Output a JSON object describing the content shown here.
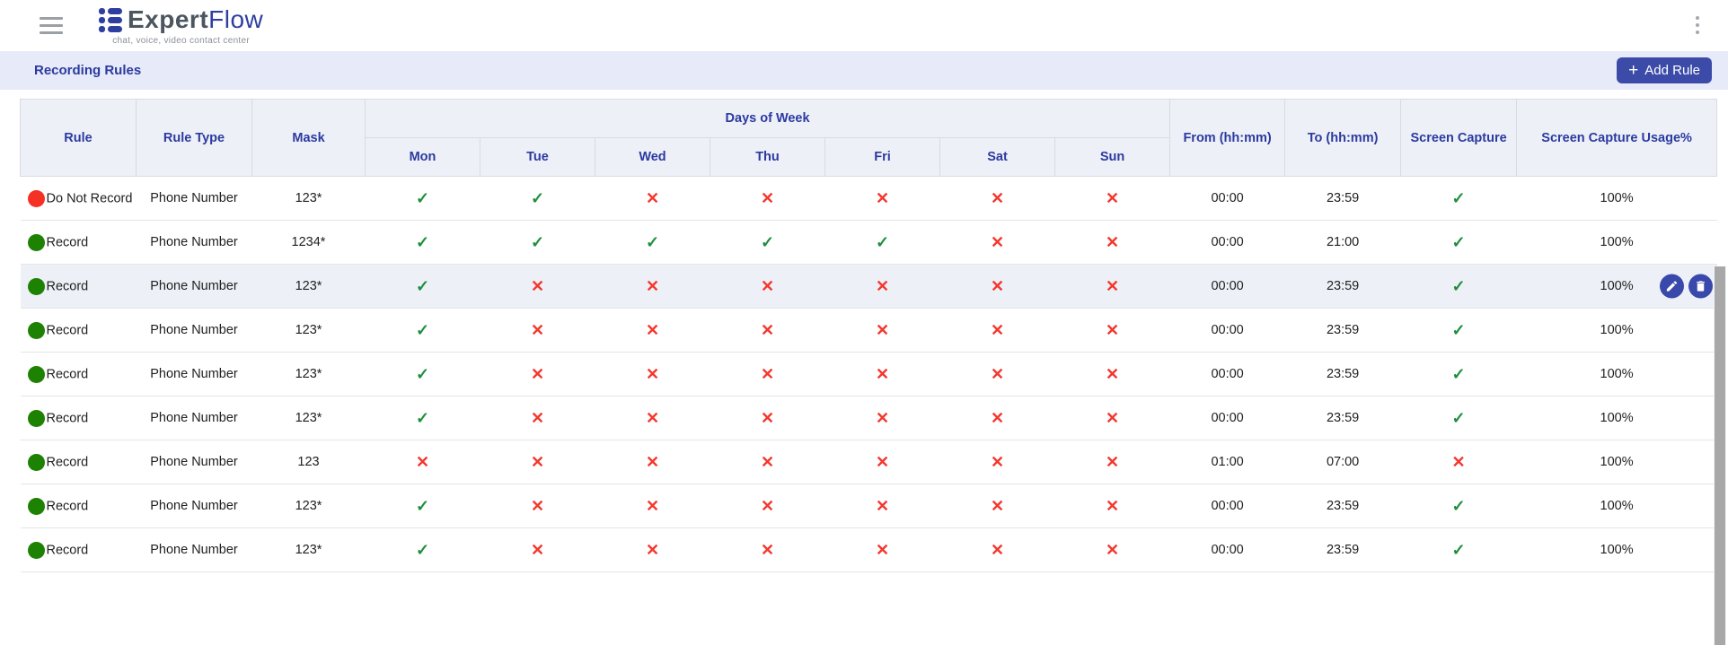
{
  "header": {
    "brand": {
      "name_primary": "Expert",
      "name_secondary": "Flow",
      "tagline": "chat, voice, video contact center"
    }
  },
  "toolbar": {
    "title": "Recording Rules",
    "add_button": {
      "plus": "+",
      "label": "Add Rule"
    }
  },
  "table": {
    "col_headers": {
      "rule": "Rule",
      "rule_type": "Rule Type",
      "mask": "Mask",
      "days_group": "Days of Week",
      "days": [
        "Mon",
        "Tue",
        "Wed",
        "Thu",
        "Fri",
        "Sat",
        "Sun"
      ],
      "from": "From (hh:mm)",
      "to": "To (hh:mm)",
      "screen_capture": "Screen Capture",
      "usage": "Screen Capture Usage%"
    },
    "glyphs": {
      "check": "✓",
      "cross": "✕"
    },
    "colors": {
      "accent": "#3c4ba8",
      "check_green": "#1e8e3e",
      "cross_red": "#f4372d",
      "record_dot": "#1d8102",
      "do_not_record_dot": "#f53126",
      "header_text": "#2b3a9f"
    },
    "rows": [
      {
        "rule": "Do Not Record",
        "dot": "red",
        "rule_type": "Phone Number",
        "mask": "123*",
        "days": [
          true,
          true,
          false,
          false,
          false,
          false,
          false
        ],
        "from": "00:00",
        "to": "23:59",
        "screen_capture": true,
        "usage": "100%"
      },
      {
        "rule": "Record",
        "dot": "green",
        "rule_type": "Phone Number",
        "mask": "1234*",
        "days": [
          true,
          true,
          true,
          true,
          true,
          false,
          false
        ],
        "from": "00:00",
        "to": "21:00",
        "screen_capture": true,
        "usage": "100%"
      },
      {
        "rule": "Record",
        "dot": "green",
        "rule_type": "Phone Number",
        "mask": "123*",
        "days": [
          true,
          false,
          false,
          false,
          false,
          false,
          false
        ],
        "from": "00:00",
        "to": "23:59",
        "screen_capture": true,
        "usage": "100%",
        "highlighted": true,
        "actions": [
          "edit",
          "delete"
        ]
      },
      {
        "rule": "Record",
        "dot": "green",
        "rule_type": "Phone Number",
        "mask": "123*",
        "days": [
          true,
          false,
          false,
          false,
          false,
          false,
          false
        ],
        "from": "00:00",
        "to": "23:59",
        "screen_capture": true,
        "usage": "100%"
      },
      {
        "rule": "Record",
        "dot": "green",
        "rule_type": "Phone Number",
        "mask": "123*",
        "days": [
          true,
          false,
          false,
          false,
          false,
          false,
          false
        ],
        "from": "00:00",
        "to": "23:59",
        "screen_capture": true,
        "usage": "100%"
      },
      {
        "rule": "Record",
        "dot": "green",
        "rule_type": "Phone Number",
        "mask": "123*",
        "days": [
          true,
          false,
          false,
          false,
          false,
          false,
          false
        ],
        "from": "00:00",
        "to": "23:59",
        "screen_capture": true,
        "usage": "100%"
      },
      {
        "rule": "Record",
        "dot": "green",
        "rule_type": "Phone Number",
        "mask": "123",
        "days": [
          false,
          false,
          false,
          false,
          false,
          false,
          false
        ],
        "from": "01:00",
        "to": "07:00",
        "screen_capture": false,
        "usage": "100%"
      },
      {
        "rule": "Record",
        "dot": "green",
        "rule_type": "Phone Number",
        "mask": "123*",
        "days": [
          true,
          false,
          false,
          false,
          false,
          false,
          false
        ],
        "from": "00:00",
        "to": "23:59",
        "screen_capture": true,
        "usage": "100%"
      },
      {
        "rule": "Record",
        "dot": "green",
        "rule_type": "Phone Number",
        "mask": "123*",
        "days": [
          true,
          false,
          false,
          false,
          false,
          false,
          false
        ],
        "from": "00:00",
        "to": "23:59",
        "screen_capture": true,
        "usage": "100%"
      }
    ]
  }
}
